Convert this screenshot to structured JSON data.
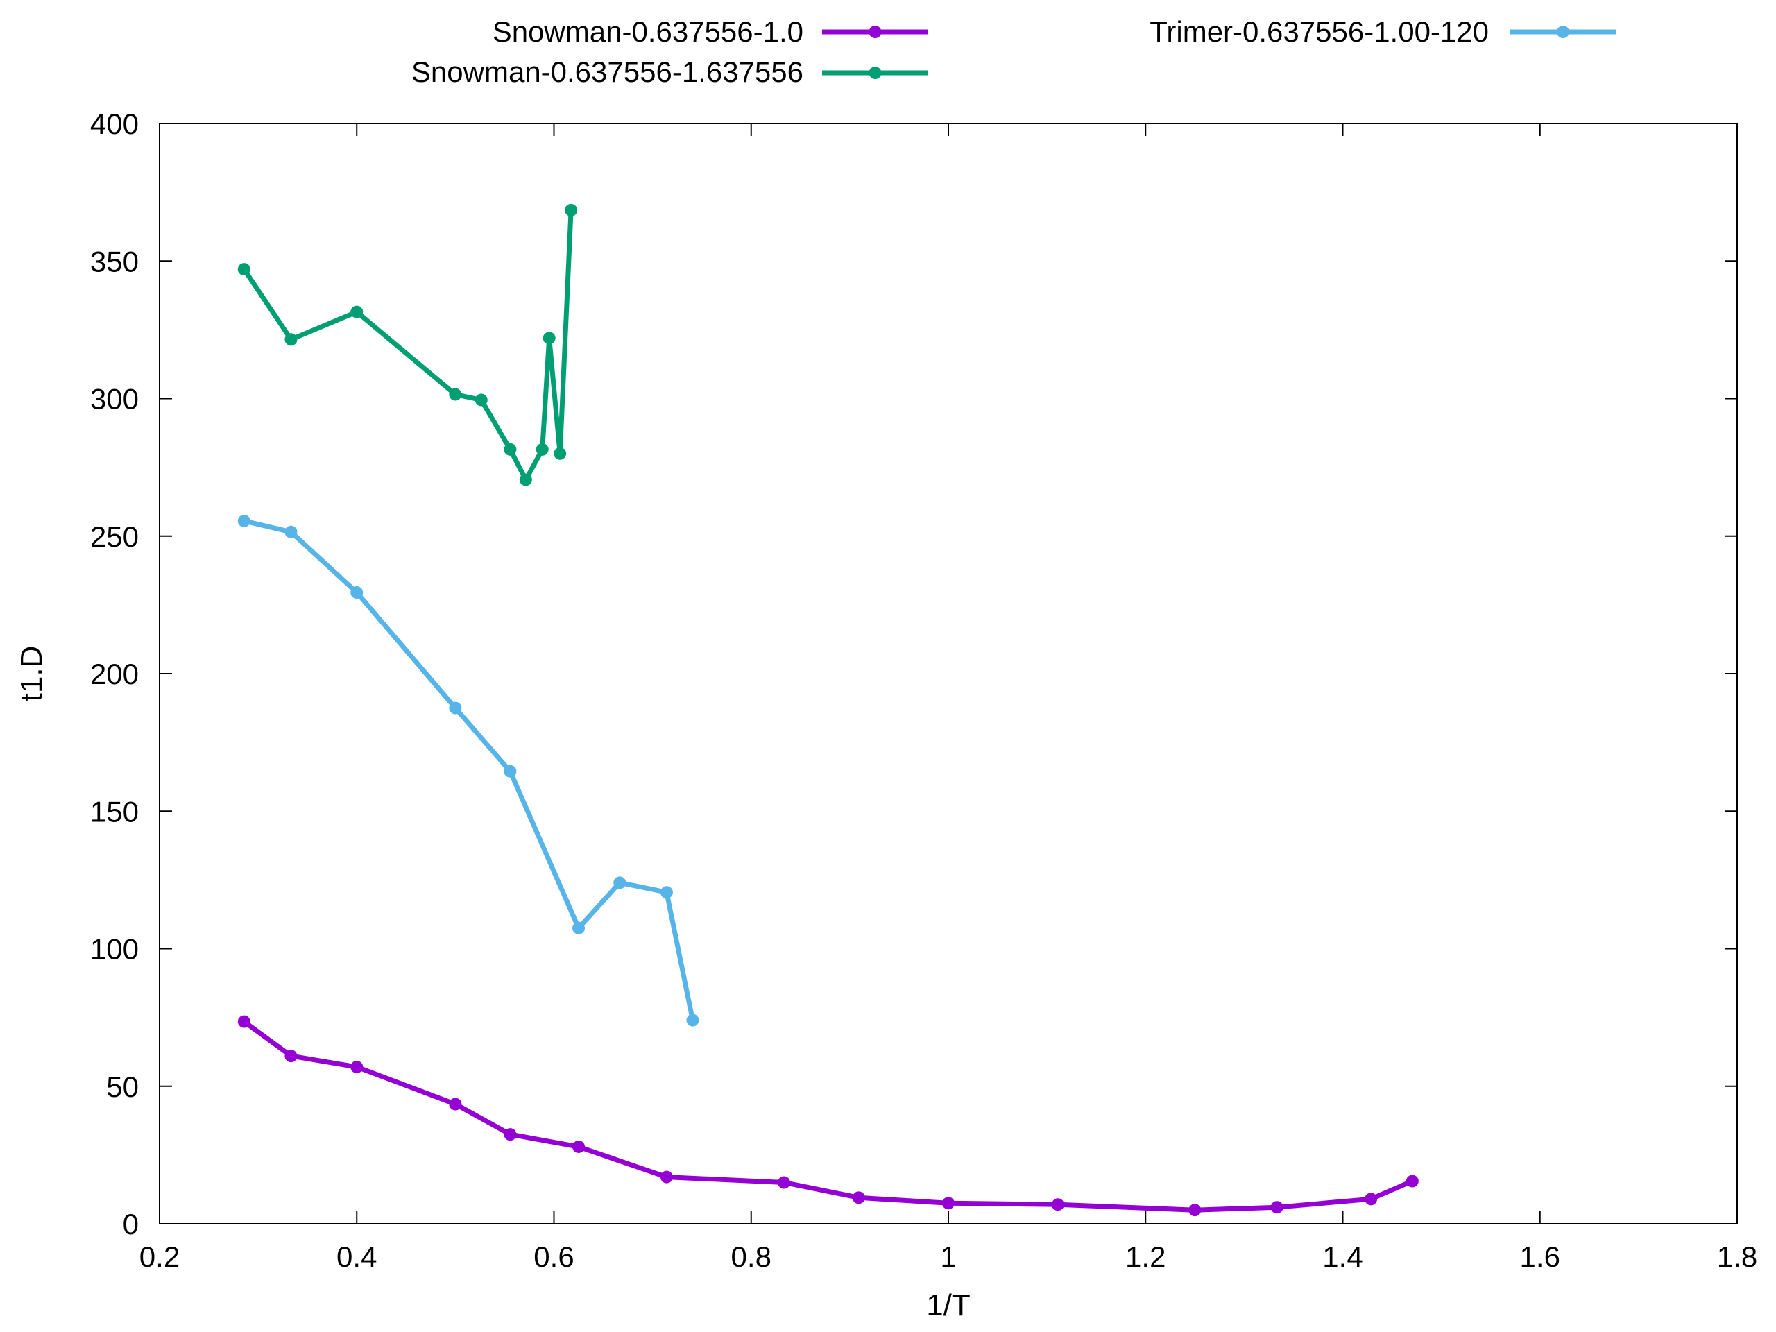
{
  "chart_data": {
    "type": "line",
    "title": "",
    "xlabel": "1/T",
    "ylabel": "t1.D",
    "xlim": [
      0.2,
      1.8
    ],
    "ylim": [
      0,
      400
    ],
    "xticks": [
      0.2,
      0.4,
      0.6,
      0.8,
      1,
      1.2,
      1.4,
      1.6,
      1.8
    ],
    "xtick_labels": [
      "0.2",
      "0.4",
      "0.6",
      "0.8",
      "1",
      "1.2",
      "1.4",
      "1.6",
      "1.8"
    ],
    "yticks": [
      0,
      50,
      100,
      150,
      200,
      250,
      300,
      350,
      400
    ],
    "ytick_labels": [
      "0",
      "50",
      "100",
      "150",
      "200",
      "250",
      "300",
      "350",
      "400"
    ],
    "grid": false,
    "legend_position": "top, above plot, two columns",
    "series": [
      {
        "name": "Snowman-0.637556-1.0",
        "color": "#9400D3",
        "marker": "circle",
        "x": [
          0.2857,
          0.3333,
          0.4,
          0.5,
          0.5556,
          0.625,
          0.7143,
          0.8333,
          0.9091,
          1.0,
          1.1111,
          1.25,
          1.3333,
          1.4286,
          1.4706
        ],
        "y": [
          73.5,
          61,
          57,
          43.5,
          32.5,
          28,
          17,
          15,
          9.5,
          7.5,
          7,
          5,
          6,
          9,
          15.5
        ]
      },
      {
        "name": "Snowman-0.637556-1.637556",
        "color": "#009E73",
        "marker": "circle",
        "x": [
          0.2857,
          0.3333,
          0.4,
          0.5,
          0.5263,
          0.5556,
          0.5714,
          0.5882,
          0.5952,
          0.6061,
          0.6173
        ],
        "y": [
          347,
          321.5,
          331.5,
          301.5,
          299.5,
          281.5,
          270.5,
          281.5,
          322,
          280,
          368.5
        ]
      },
      {
        "name": "Trimer-0.637556-1.00-120",
        "color": "#56B4E9",
        "marker": "circle",
        "x": [
          0.2857,
          0.3333,
          0.4,
          0.5,
          0.5556,
          0.625,
          0.6667,
          0.7143,
          0.7407
        ],
        "y": [
          255.5,
          251.5,
          229.5,
          187.5,
          164.5,
          107.5,
          124,
          120.5,
          74
        ]
      }
    ]
  }
}
